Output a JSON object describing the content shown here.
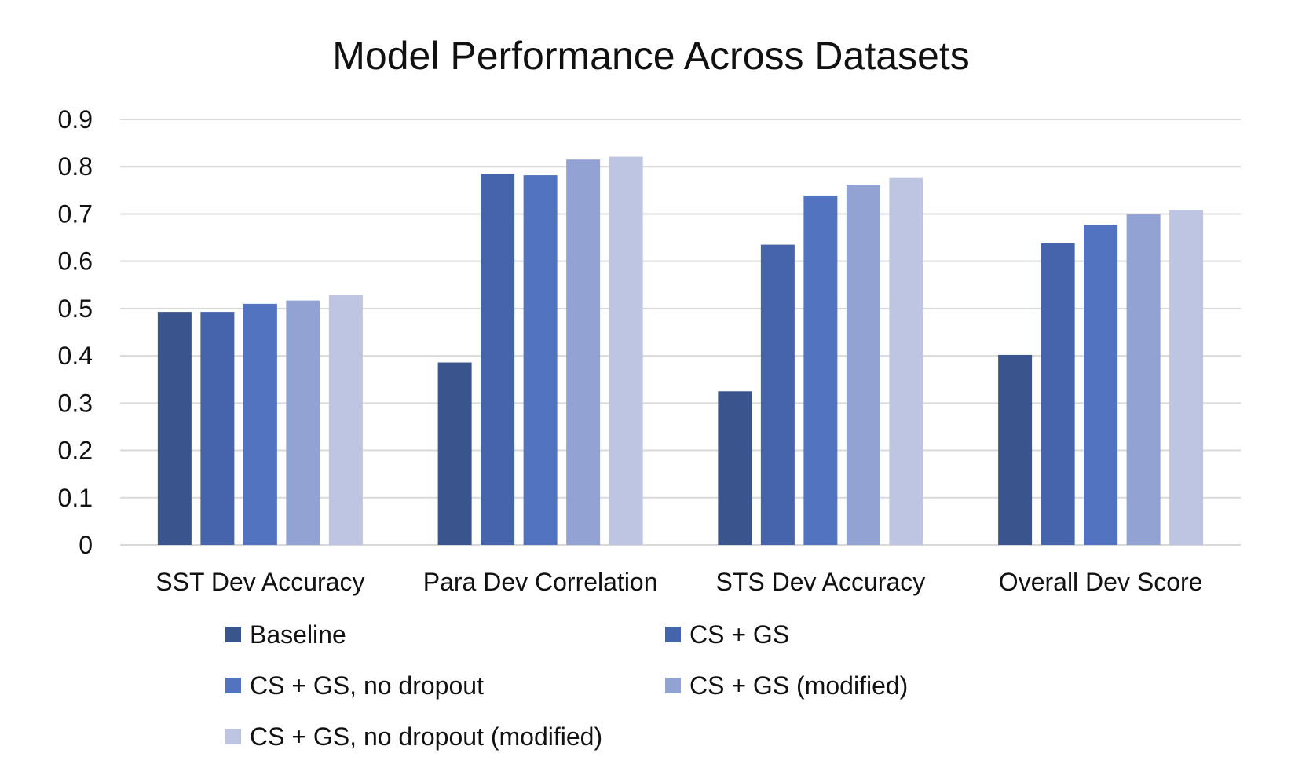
{
  "chart_data": {
    "type": "bar",
    "title": "Model Performance Across Datasets",
    "xlabel": "",
    "ylabel": "",
    "ylim": [
      0,
      0.9
    ],
    "yticks": [
      "0",
      "0.1",
      "0.2",
      "0.3",
      "0.4",
      "0.5",
      "0.6",
      "0.7",
      "0.8",
      "0.9"
    ],
    "grid": true,
    "legend_position": "bottom",
    "categories": [
      "SST Dev Accuracy",
      "Para Dev Correlation",
      "STS Dev Accuracy",
      "Overall Dev Score"
    ],
    "series": [
      {
        "name": "Baseline",
        "color": "#3a558e",
        "values": [
          0.493,
          0.386,
          0.325,
          0.402
        ]
      },
      {
        "name": "CS + GS",
        "color": "#4564ab",
        "values": [
          0.493,
          0.785,
          0.635,
          0.638
        ]
      },
      {
        "name": "CS + GS, no dropout",
        "color": "#5274c0",
        "values": [
          0.51,
          0.782,
          0.739,
          0.677
        ]
      },
      {
        "name": "CS + GS (modified)",
        "color": "#92a3d3",
        "values": [
          0.517,
          0.815,
          0.762,
          0.699
        ]
      },
      {
        "name": "CS + GS, no dropout (modified)",
        "color": "#bdc5e3",
        "values": [
          0.528,
          0.821,
          0.776,
          0.708
        ]
      }
    ]
  }
}
